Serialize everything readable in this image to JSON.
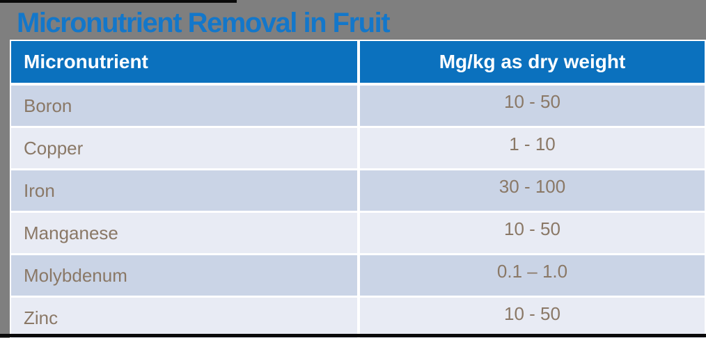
{
  "title": "Micronutrient Removal in Fruit",
  "colors": {
    "background": "#7F7F7F",
    "bar": "#0A0A0A",
    "title_color": "#1377CA",
    "header_bg": "#0B71BE",
    "header_text": "#FFFFFF",
    "row_odd": "#CAD4E6",
    "row_even": "#E8EBF4",
    "cell_text": "#8A7866",
    "divider": "#FFFFFF"
  },
  "table": {
    "columns": [
      "Micronutrient",
      "Mg/kg as dry weight"
    ],
    "rows": [
      {
        "micronutrient": "Boron",
        "value": "10 - 50"
      },
      {
        "micronutrient": "Copper",
        "value": "1 - 10"
      },
      {
        "micronutrient": "Iron",
        "value": "30 - 100"
      },
      {
        "micronutrient": "Manganese",
        "value": "10 - 50"
      },
      {
        "micronutrient": "Molybdenum",
        "value": "0.1 – 1.0"
      },
      {
        "micronutrient": "Zinc",
        "value": "10 - 50"
      }
    ]
  },
  "chart_data": {
    "type": "table",
    "title": "Micronutrient Removal in Fruit",
    "columns": [
      "Micronutrient",
      "Mg/kg as dry weight"
    ],
    "rows": [
      [
        "Boron",
        "10 - 50"
      ],
      [
        "Copper",
        "1 - 10"
      ],
      [
        "Iron",
        "30 - 100"
      ],
      [
        "Manganese",
        "10 - 50"
      ],
      [
        "Molybdenum",
        "0.1 – 1.0"
      ],
      [
        "Zinc",
        "10 - 50"
      ]
    ]
  }
}
